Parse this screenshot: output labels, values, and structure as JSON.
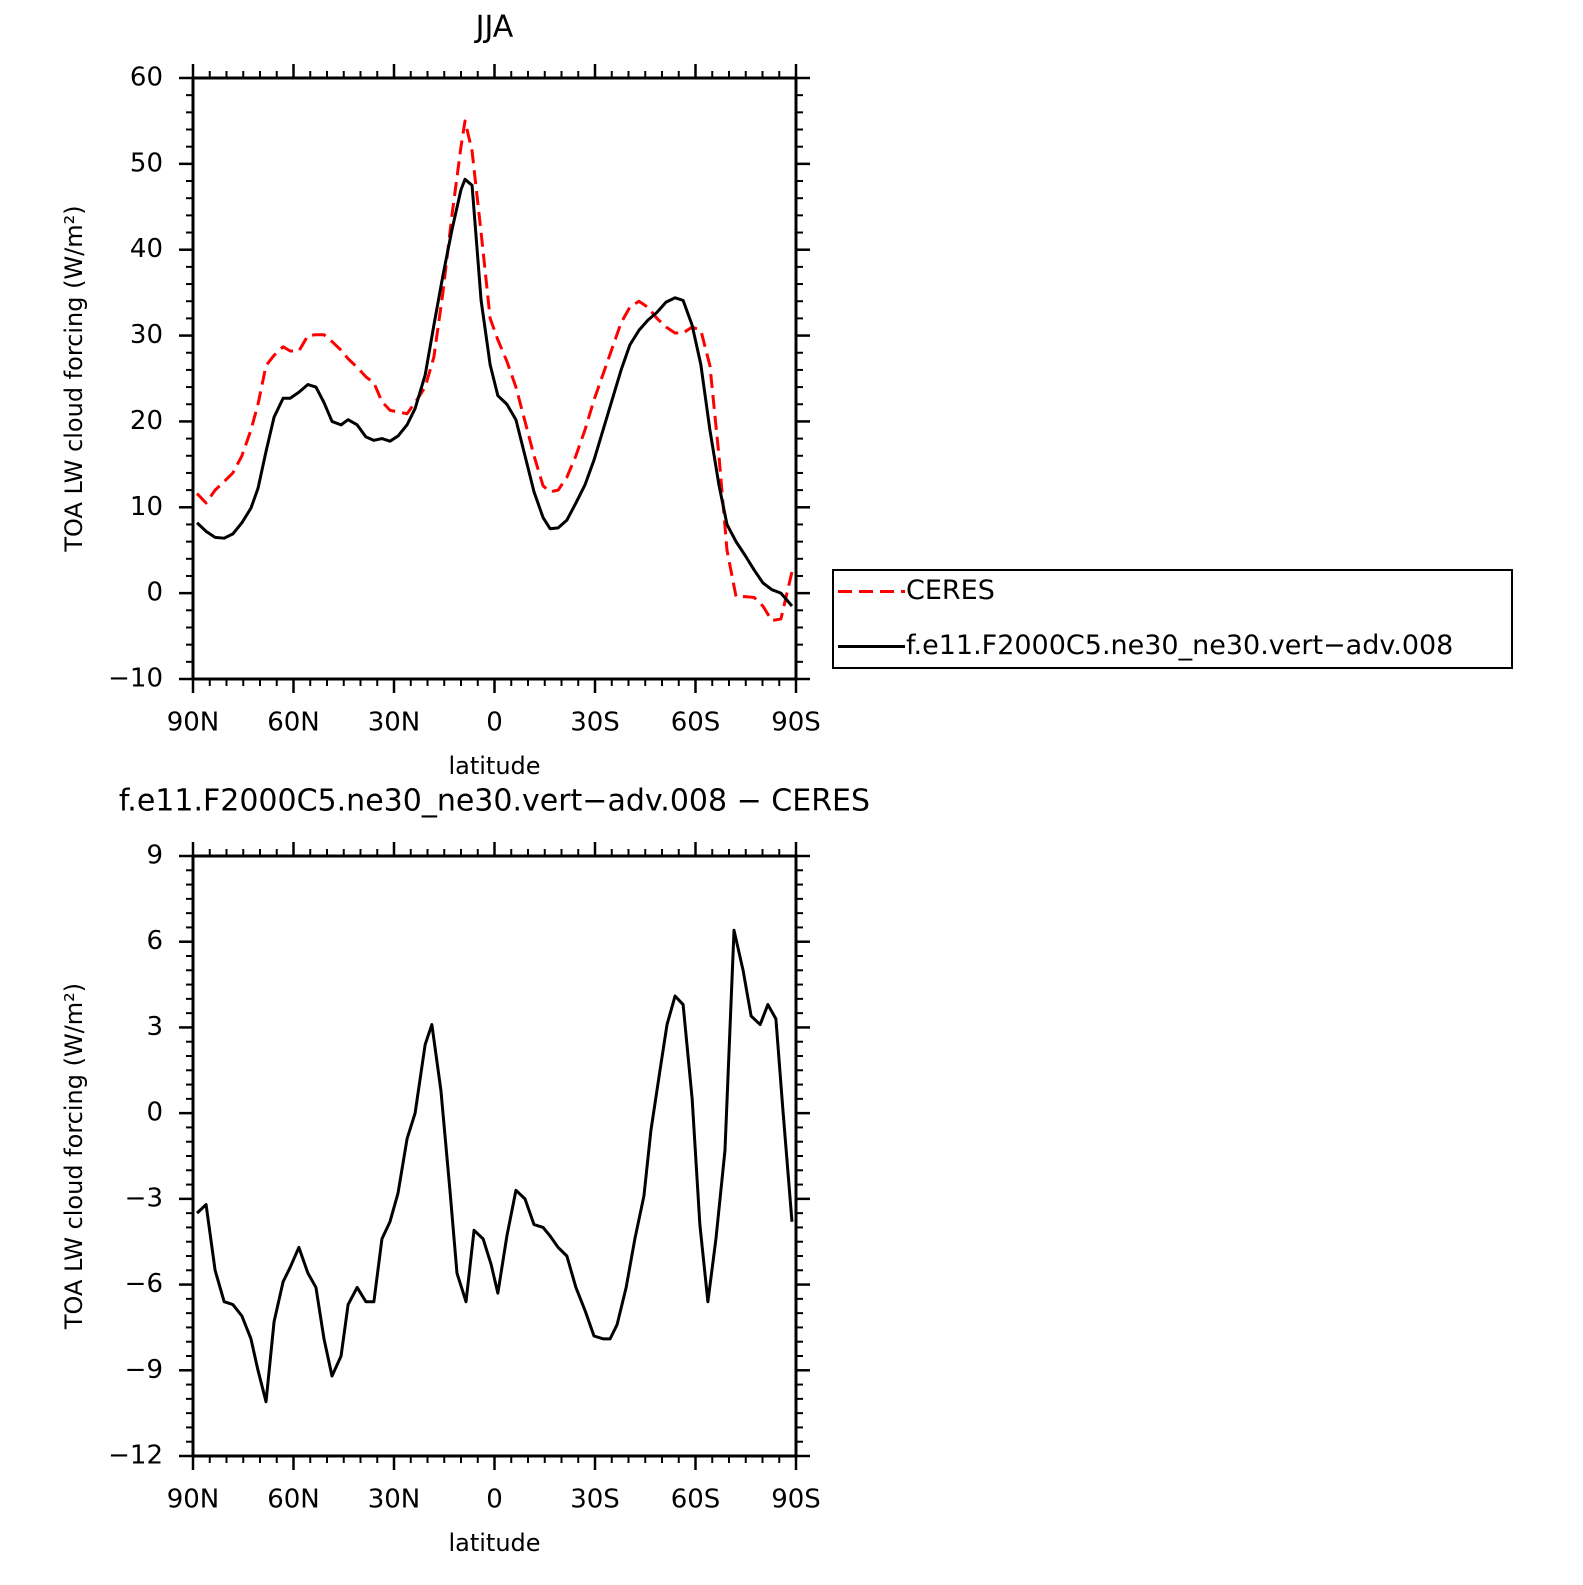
{
  "chart_data": [
    {
      "type": "line",
      "title": "JJA",
      "xlabel": "latitude",
      "ylabel": "TOA LW cloud forcing (W/m²)",
      "xlim": [
        90,
        -90
      ],
      "ylim": [
        -10,
        60
      ],
      "xticks": [
        {
          "value": 90,
          "label": "90N"
        },
        {
          "value": 60,
          "label": "60N"
        },
        {
          "value": 30,
          "label": "30N"
        },
        0,
        {
          "value": -30,
          "label": "30S"
        },
        {
          "value": -60,
          "label": "60S"
        },
        {
          "value": -90,
          "label": "90S"
        }
      ],
      "yticks": [
        {
          "value": -10,
          "label": "−10"
        },
        0,
        10,
        20,
        30,
        40,
        50,
        60
      ],
      "legend": "outside right",
      "x": [
        88.8,
        86.1,
        83.4,
        80.7,
        78.1,
        75.4,
        72.7,
        70.6,
        68.2,
        65.8,
        63.1,
        61.0,
        58.4,
        55.7,
        53.3,
        50.9,
        48.5,
        45.8,
        43.7,
        41.0,
        38.4,
        36.0,
        33.6,
        31.2,
        28.8,
        26.1,
        23.7,
        20.7,
        18.1,
        15.4,
        12.7,
        10.0,
        8.8,
        6.7,
        4.0,
        1.3,
        -1.0,
        -3.7,
        -6.4,
        -9.1,
        -11.8,
        -14.5,
        -16.6,
        -19.0,
        -21.6,
        -24.3,
        -27.0,
        -29.7,
        -32.4,
        -35.1,
        -37.8,
        -40.4,
        -43.1,
        -45.8,
        -48.5,
        -51.2,
        -53.9,
        -56.3,
        -59.0,
        -61.6,
        -64.3,
        -67.0,
        -69.4,
        -72.1,
        -74.8,
        -77.5,
        -80.1,
        -82.8,
        -85.5,
        -88.8
      ],
      "series": [
        {
          "name": "CERES",
          "color": "#ff0000",
          "line_style": "dashed",
          "values": [
            11.6,
            10.5,
            12,
            13,
            14,
            16,
            19,
            22,
            26.5,
            27.7,
            28.7,
            28.2,
            28.2,
            30,
            30.1,
            30.1,
            29.3,
            28.3,
            27.3,
            26.3,
            25.2,
            24.5,
            22.3,
            21.3,
            21.1,
            20.9,
            22.2,
            24,
            27.5,
            35,
            44,
            52,
            55,
            51.5,
            42,
            32,
            29.5,
            27,
            24,
            20,
            16,
            12.5,
            11.8,
            12,
            13.5,
            16,
            19,
            22.5,
            25.5,
            28.5,
            31.5,
            33.3,
            34,
            33.3,
            32,
            31,
            30.3,
            30.3,
            31,
            30.6,
            26.5,
            16,
            5,
            -0.4,
            -0.4,
            -0.5,
            -1.5,
            -3.2,
            -3,
            2.5
          ]
        },
        {
          "name": "f.e11.F2000C5.ne30_ne30.vert−adv.008",
          "color": "#000000",
          "line_style": "solid",
          "values": [
            8.2,
            7.2,
            6.5,
            6.4,
            6.9,
            8.2,
            9.9,
            12.2,
            16.5,
            20.5,
            22.7,
            22.7,
            23.4,
            24.3,
            24,
            22.2,
            20,
            19.6,
            20.2,
            19.6,
            18.2,
            17.8,
            18,
            17.7,
            18.3,
            19.6,
            21.5,
            25.4,
            31.2,
            37,
            42.3,
            47,
            48.2,
            47.5,
            34.1,
            26.6,
            23,
            22,
            20.2,
            16,
            11.8,
            8.8,
            7.5,
            7.6,
            8.5,
            10.5,
            12.6,
            15.5,
            19,
            22.5,
            26,
            28.9,
            30.6,
            31.8,
            32.7,
            33.9,
            34.4,
            34.1,
            31.2,
            26.6,
            19,
            12.6,
            8,
            6,
            4.4,
            2.7,
            1.2,
            0.4,
            0,
            -1.5
          ]
        }
      ]
    },
    {
      "type": "line",
      "title": "f.e11.F2000C5.ne30_ne30.vert−adv.008 − CERES",
      "xlabel": "latitude",
      "ylabel": "TOA LW cloud forcing (W/m²)",
      "xlim": [
        90,
        -90
      ],
      "ylim": [
        -12,
        9
      ],
      "xticks": [
        {
          "value": 90,
          "label": "90N"
        },
        {
          "value": 60,
          "label": "60N"
        },
        {
          "value": 30,
          "label": "30N"
        },
        0,
        {
          "value": -30,
          "label": "30S"
        },
        {
          "value": -60,
          "label": "60S"
        },
        {
          "value": -90,
          "label": "90S"
        }
      ],
      "yticks": [
        {
          "value": -12,
          "label": "−12"
        },
        {
          "value": -9,
          "label": "−9"
        },
        {
          "value": -6,
          "label": "−6"
        },
        {
          "value": -3,
          "label": "−3"
        },
        0,
        3,
        6,
        9
      ],
      "x": [
        88.8,
        86.1,
        83.4,
        80.7,
        78.1,
        75.4,
        72.7,
        70.6,
        68.2,
        65.8,
        63.1,
        61.0,
        58.4,
        55.7,
        53.3,
        50.9,
        48.5,
        45.8,
        43.7,
        41.0,
        38.4,
        36.0,
        33.6,
        31.2,
        28.8,
        26.1,
        23.7,
        20.7,
        18.7,
        16.0,
        13.3,
        11.2,
        8.5,
        6.1,
        3.4,
        1.0,
        -1.0,
        -3.7,
        -6.4,
        -9.1,
        -11.8,
        -14.5,
        -16.6,
        -19.0,
        -21.6,
        -24.3,
        -27.0,
        -29.7,
        -32.4,
        -34.5,
        -36.6,
        -39.3,
        -41.9,
        -44.6,
        -46.7,
        -49.4,
        -51.5,
        -53.9,
        -56.3,
        -59.0,
        -61.3,
        -63.7,
        -66.1,
        -68.8,
        -71.5,
        -74.2,
        -76.6,
        -79.3,
        -81.6,
        -84.0,
        -86.1,
        -88.8
      ],
      "series": [
        {
          "color": "#000000",
          "line_style": "solid",
          "values": [
            -3.5,
            -3.2,
            -5.5,
            -6.6,
            -6.7,
            -7.1,
            -7.9,
            -9,
            -10.1,
            -7.3,
            -5.9,
            -5.4,
            -4.7,
            -5.6,
            -6.1,
            -7.9,
            -9.2,
            -8.5,
            -6.7,
            -6.1,
            -6.6,
            -6.6,
            -4.4,
            -3.8,
            -2.8,
            -0.9,
            0,
            2.4,
            3.1,
            0.8,
            -2.7,
            -5.6,
            -6.6,
            -4.1,
            -4.4,
            -5.3,
            -6.3,
            -4.3,
            -2.7,
            -3,
            -3.9,
            -4,
            -4.3,
            -4.7,
            -5,
            -6.1,
            -6.9,
            -7.8,
            -7.9,
            -7.9,
            -7.4,
            -6.1,
            -4.4,
            -2.9,
            -0.6,
            1.5,
            3.1,
            4.1,
            3.8,
            0.5,
            -3.9,
            -6.6,
            -4.4,
            -1.3,
            6.4,
            5,
            3.4,
            3.1,
            3.8,
            3.3,
            0.1,
            -3.8
          ]
        }
      ]
    }
  ]
}
